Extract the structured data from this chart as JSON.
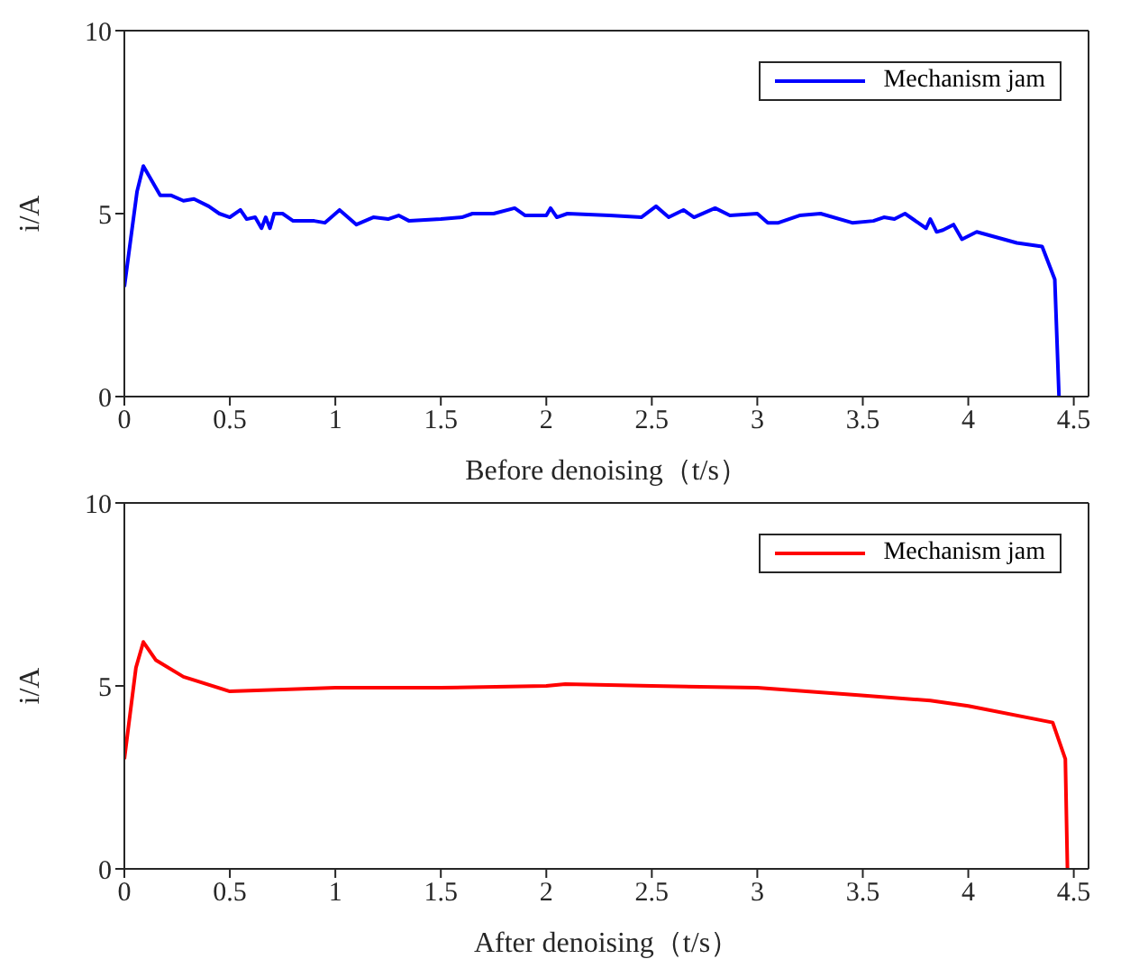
{
  "chart_data": [
    {
      "type": "line",
      "xlabel": "Before denoising（t/s）",
      "ylabel": "i/A",
      "xlim": [
        0,
        4.57
      ],
      "xticks": [
        0,
        0.5,
        1,
        1.5,
        2,
        2.5,
        3,
        3.5,
        4,
        4.5
      ],
      "ylim": [
        0,
        10
      ],
      "yticks": [
        0,
        5,
        10
      ],
      "grid": false,
      "legend": "top right",
      "marker": "none",
      "line_style": "solid",
      "series": [
        {
          "name": "Mechanism jam",
          "color": "#0000ff",
          "x": [
            0,
            0.06,
            0.09,
            0.17,
            0.22,
            0.28,
            0.33,
            0.4,
            0.45,
            0.5,
            0.55,
            0.58,
            0.62,
            0.65,
            0.67,
            0.69,
            0.71,
            0.75,
            0.8,
            0.9,
            0.95,
            1.02,
            1.1,
            1.18,
            1.25,
            1.3,
            1.35,
            1.5,
            1.6,
            1.65,
            1.75,
            1.85,
            1.9,
            2.0,
            2.02,
            2.05,
            2.1,
            2.3,
            2.45,
            2.52,
            2.58,
            2.65,
            2.7,
            2.8,
            2.87,
            3.0,
            3.05,
            3.1,
            3.2,
            3.3,
            3.45,
            3.55,
            3.6,
            3.65,
            3.7,
            3.8,
            3.82,
            3.85,
            3.88,
            3.93,
            3.97,
            4.04,
            4.23,
            4.35,
            4.41,
            4.43
          ],
          "values": [
            3.0,
            5.6,
            6.3,
            5.5,
            5.5,
            5.35,
            5.4,
            5.2,
            5.0,
            4.9,
            5.1,
            4.85,
            4.9,
            4.6,
            4.9,
            4.6,
            5.0,
            5.0,
            4.8,
            4.8,
            4.75,
            5.1,
            4.7,
            4.9,
            4.85,
            4.95,
            4.8,
            4.85,
            4.9,
            5.0,
            5.0,
            5.15,
            4.95,
            4.95,
            5.15,
            4.9,
            5.0,
            4.95,
            4.9,
            5.2,
            4.9,
            5.1,
            4.9,
            5.15,
            4.95,
            5.0,
            4.75,
            4.75,
            4.95,
            5.0,
            4.75,
            4.8,
            4.9,
            4.85,
            5.0,
            4.6,
            4.85,
            4.5,
            4.55,
            4.7,
            4.3,
            4.5,
            4.2,
            4.1,
            3.2,
            0
          ]
        }
      ]
    },
    {
      "type": "line",
      "xlabel": "After denoising（t/s）",
      "ylabel": "i/A",
      "xlim": [
        0,
        4.57
      ],
      "xticks": [
        0,
        0.5,
        1,
        1.5,
        2,
        2.5,
        3,
        3.5,
        4,
        4.5
      ],
      "ylim": [
        0,
        10
      ],
      "yticks": [
        0,
        5,
        10
      ],
      "grid": false,
      "legend": "top right",
      "marker": "none",
      "line_style": "solid",
      "series": [
        {
          "name": "Mechanism jam",
          "color": "#ff0000",
          "x": [
            0,
            0.055,
            0.09,
            0.15,
            0.28,
            0.5,
            1.0,
            1.5,
            2.0,
            2.09,
            2.5,
            3.0,
            3.48,
            3.82,
            4.0,
            4.4,
            4.46,
            4.47
          ],
          "values": [
            3.0,
            5.5,
            6.2,
            5.7,
            5.25,
            4.85,
            4.95,
            4.95,
            5.0,
            5.05,
            5.0,
            4.95,
            4.75,
            4.6,
            4.45,
            4.0,
            3.0,
            0
          ]
        }
      ]
    }
  ]
}
